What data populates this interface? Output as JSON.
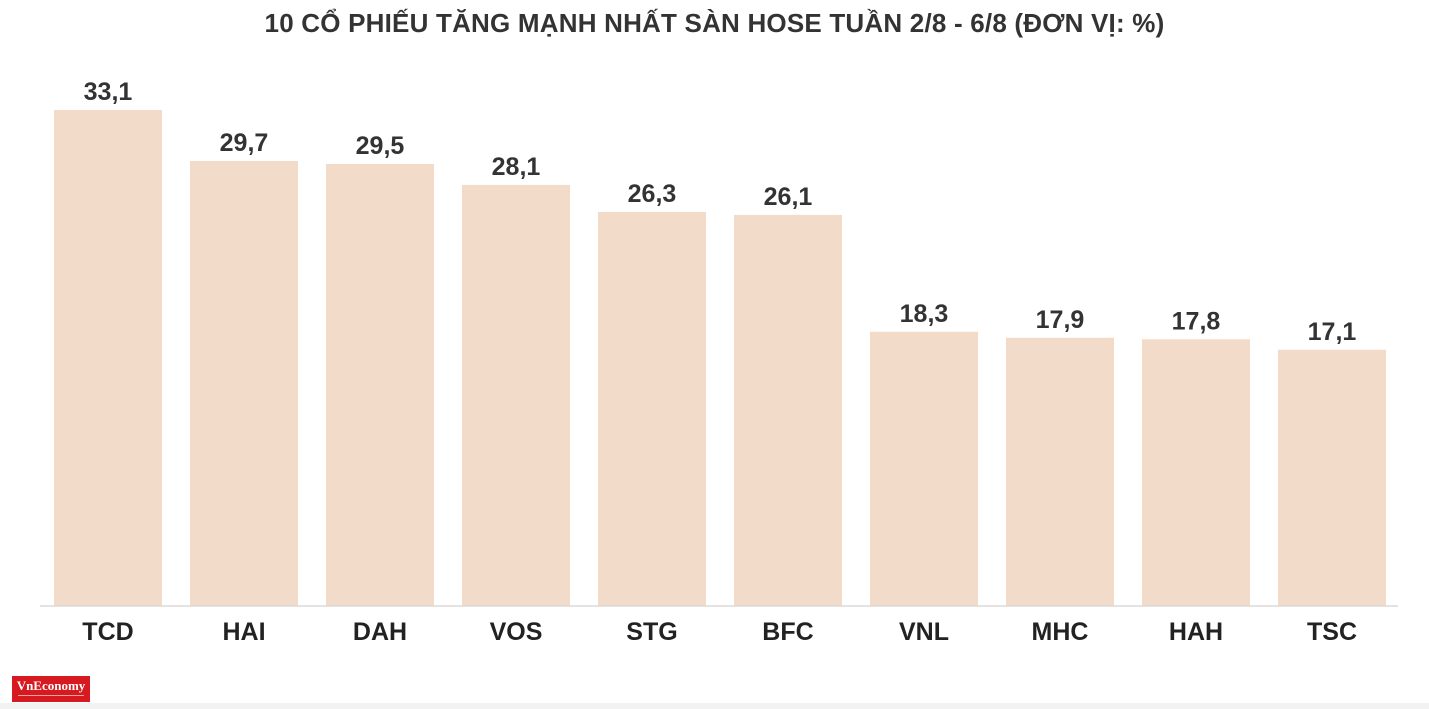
{
  "chart_data": {
    "type": "bar",
    "title": "10 CỔ PHIẾU TĂNG MẠNH NHẤT SÀN HOSE TUẦN 2/8 - 6/8 (ĐƠN VỊ: %)",
    "categories": [
      "TCD",
      "HAI",
      "DAH",
      "VOS",
      "STG",
      "BFC",
      "VNL",
      "MHC",
      "HAH",
      "TSC"
    ],
    "values": [
      33.1,
      29.7,
      29.5,
      28.1,
      26.3,
      26.1,
      18.3,
      17.9,
      17.8,
      17.1
    ],
    "value_labels": [
      "33,1",
      "29,7",
      "29,5",
      "28,1",
      "26,3",
      "26,1",
      "18,3",
      "17,9",
      "17,8",
      "17,1"
    ],
    "ylim": [
      0,
      33.1
    ],
    "grid": false,
    "bar_color": "#f2dbc8"
  },
  "brand": {
    "name": "VnEconomy",
    "color": "#d71920"
  }
}
